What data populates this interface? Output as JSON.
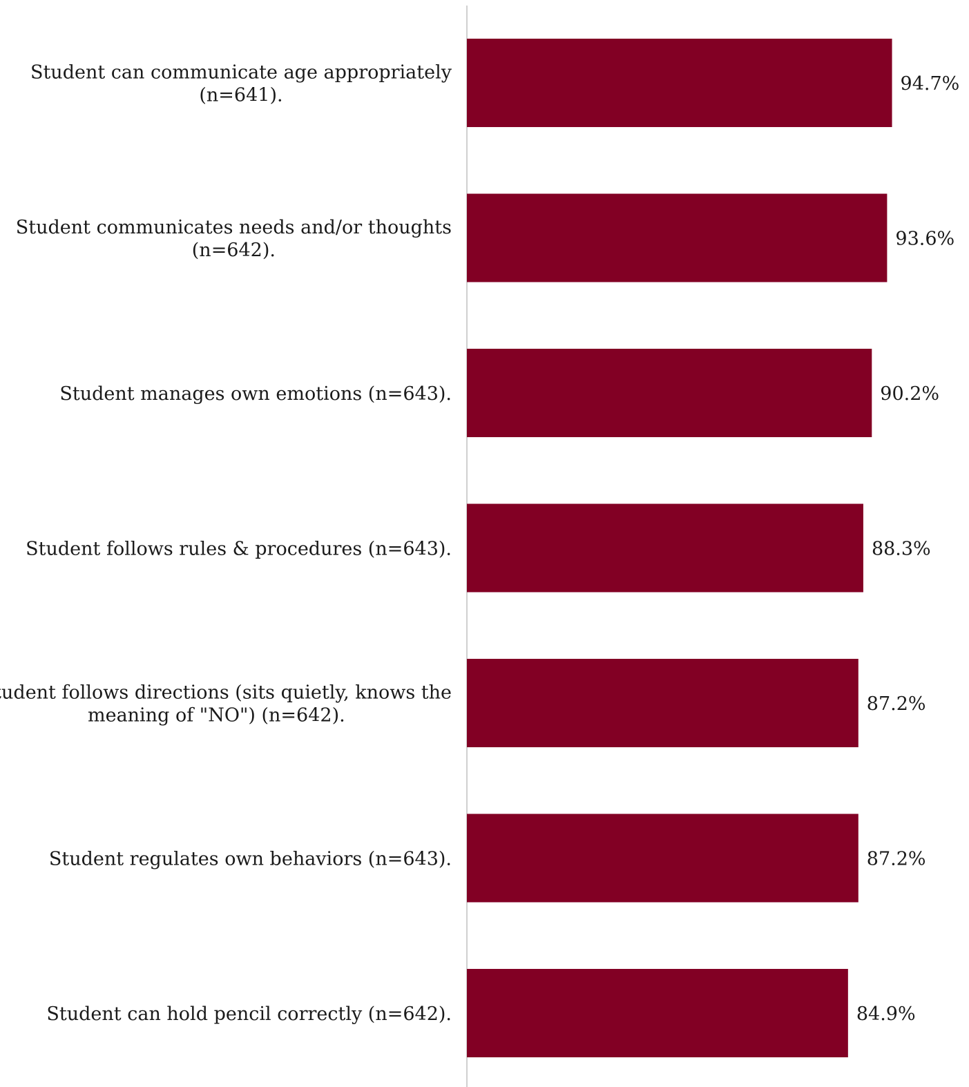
{
  "chart_data": {
    "type": "bar",
    "orientation": "horizontal",
    "categories": [
      [
        "Student can communicate age appropriately",
        "(n=641)."
      ],
      [
        "Student communicates needs and/or thoughts",
        "(n=642)."
      ],
      [
        "Student manages own emotions (n=643)."
      ],
      [
        "Student follows rules & procedures (n=643)."
      ],
      [
        "Student follows directions (sits quietly, knows the",
        "meaning of \"NO\") (n=642)."
      ],
      [
        "Student regulates own behaviors (n=643)."
      ],
      [
        "Student can hold pencil correctly (n=642)."
      ]
    ],
    "values": [
      94.7,
      93.6,
      90.2,
      88.3,
      87.2,
      87.2,
      84.9
    ],
    "value_labels": [
      "94.7%",
      "93.6%",
      "90.2%",
      "88.3%",
      "87.2%",
      "87.2%",
      "84.9%"
    ],
    "xlim": [
      0,
      100
    ],
    "grid": false,
    "legend": "none",
    "bar_color": "#820024",
    "axis_color": "#d0d0d0",
    "text_color": "#1a1a1a"
  }
}
